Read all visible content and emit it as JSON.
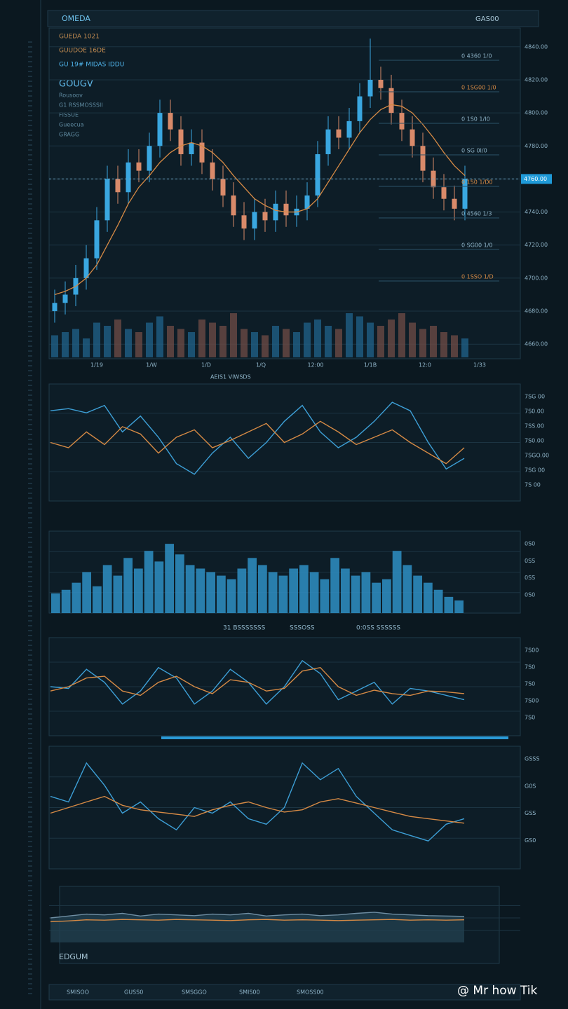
{
  "header": {
    "title": "OMEDA",
    "right": "GAS00"
  },
  "info": {
    "lines": [
      "GUEDA 1021",
      "GUUDOE 16DE",
      "GU 19# MIDAS IDDU"
    ],
    "heading": "GOUGV",
    "sub": [
      "Rousoov",
      "G1 RSSMOSSSII",
      "FISSUE",
      "Gueecua",
      "GRAGG"
    ]
  },
  "main": {
    "ylim": [
      4655,
      4845
    ],
    "yticks": [
      {
        "value": 4840,
        "label": "4840.00"
      },
      {
        "value": 4820,
        "label": "4820.00"
      },
      {
        "value": 4800,
        "label": "4800.00"
      },
      {
        "value": 4780,
        "label": "4780.00"
      },
      {
        "value": 4760,
        "label": "4760.00"
      },
      {
        "value": 4740,
        "label": "4740.00"
      },
      {
        "value": 4720,
        "label": "4720.00"
      },
      {
        "value": 4700,
        "label": "4700.00"
      },
      {
        "value": 4680,
        "label": "4680.00"
      },
      {
        "value": 4660,
        "label": "4660.00"
      }
    ],
    "open": [
      4680,
      4685,
      4690,
      4700,
      4712,
      4735,
      4760,
      4752,
      4770,
      4765,
      4780,
      4800,
      4790,
      4775,
      4782,
      4770,
      4760,
      4750,
      4738,
      4730,
      4740,
      4735,
      4745,
      4738,
      4742,
      4750,
      4775,
      4790,
      4785,
      4795,
      4810,
      4820,
      4815,
      4800,
      4790,
      4780,
      4765,
      4755,
      4748,
      4742
    ],
    "high": [
      4693,
      4698,
      4708,
      4720,
      4743,
      4768,
      4768,
      4778,
      4778,
      4788,
      4808,
      4808,
      4798,
      4790,
      4790,
      4778,
      4768,
      4758,
      4746,
      4748,
      4748,
      4753,
      4753,
      4750,
      4758,
      4783,
      4798,
      4798,
      4803,
      4818,
      4845,
      4828,
      4823,
      4808,
      4798,
      4788,
      4773,
      4763,
      4756,
      4768
    ],
    "low": [
      4673,
      4678,
      4683,
      4693,
      4705,
      4728,
      4745,
      4745,
      4758,
      4758,
      4773,
      4783,
      4768,
      4768,
      4763,
      4753,
      4743,
      4731,
      4723,
      4723,
      4728,
      4728,
      4731,
      4731,
      4735,
      4743,
      4768,
      4778,
      4778,
      4788,
      4803,
      4808,
      4793,
      4783,
      4773,
      4758,
      4748,
      4741,
      4735,
      4735
    ],
    "close": [
      4685,
      4690,
      4700,
      4712,
      4735,
      4760,
      4752,
      4770,
      4765,
      4780,
      4800,
      4790,
      4775,
      4782,
      4770,
      4760,
      4750,
      4738,
      4730,
      4740,
      4735,
      4745,
      4738,
      4742,
      4750,
      4775,
      4790,
      4785,
      4795,
      4810,
      4820,
      4815,
      4800,
      4790,
      4780,
      4765,
      4755,
      4748,
      4742,
      4760
    ],
    "ma": [
      4690,
      4692,
      4695,
      4700,
      4708,
      4720,
      4732,
      4745,
      4755,
      4762,
      4770,
      4776,
      4780,
      4782,
      4780,
      4776,
      4770,
      4762,
      4755,
      4748,
      4744,
      4741,
      4740,
      4740,
      4742,
      4748,
      4758,
      4768,
      4778,
      4788,
      4796,
      4802,
      4805,
      4804,
      4800,
      4793,
      4785,
      4776,
      4768,
      4762
    ],
    "vlim": [
      0,
      100
    ],
    "volume": [
      35,
      40,
      45,
      30,
      55,
      50,
      60,
      45,
      40,
      55,
      65,
      50,
      45,
      40,
      60,
      55,
      50,
      70,
      45,
      40,
      35,
      50,
      45,
      40,
      55,
      60,
      50,
      45,
      70,
      65,
      55,
      50,
      60,
      70,
      55,
      45,
      50,
      40,
      35,
      30
    ],
    "xlabels": [
      "1/19",
      "1/W",
      "1/D",
      "1/Q",
      "12:00",
      "1/1B",
      "12:0",
      "1/33"
    ],
    "tag": {
      "value": 4760,
      "label": "4760.00"
    },
    "levels": [
      "0 4360 1/0",
      "0 1SG00 1/0",
      "0 1S0 1/I0",
      "0 SG 0I/0",
      "0 1S0 1/D0",
      "0 4560 1/3",
      "0 SG00 1/0",
      "0 1SSO 1/D"
    ]
  },
  "panels": [
    {
      "type": "line",
      "ylim": [
        0,
        100
      ],
      "labels": [
        "7SG 00",
        "7S0.00",
        "7SS.00",
        "7S0.00",
        "7SGO.00",
        "7SG 00",
        "7S 00"
      ],
      "series": [
        {
          "color": "#3d9fd6",
          "values": [
            80,
            82,
            78,
            85,
            60,
            75,
            55,
            30,
            20,
            40,
            55,
            35,
            50,
            70,
            85,
            60,
            45,
            55,
            70,
            88,
            80,
            50,
            25,
            35
          ]
        },
        {
          "color": "#d68a45",
          "values": [
            50,
            45,
            60,
            48,
            65,
            58,
            40,
            55,
            62,
            45,
            52,
            60,
            68,
            50,
            58,
            70,
            60,
            48,
            55,
            62,
            50,
            40,
            30,
            45
          ]
        }
      ]
    },
    {
      "type": "bar",
      "ylim": [
        0,
        100
      ],
      "labels": [
        "0S0",
        "0SS",
        "0SS",
        "0S0"
      ],
      "color": "#2f8fc4",
      "series": [
        {
          "color": "#2f8fc4",
          "values": [
            20,
            25,
            35,
            50,
            30,
            60,
            45,
            70,
            55,
            80,
            65,
            90,
            75,
            60,
            55,
            50,
            45,
            40,
            55,
            70,
            60,
            50,
            45,
            55,
            60,
            50,
            40,
            70,
            55,
            45,
            50,
            35,
            40,
            80,
            60,
            45,
            35,
            25,
            15,
            10
          ]
        }
      ]
    },
    {
      "type": "line",
      "ylim": [
        0,
        100
      ],
      "labels": [
        "7S00",
        "7S0",
        "7S0",
        "7S00",
        "7S0"
      ],
      "series": [
        {
          "color": "#3d9fd6",
          "values": [
            50,
            48,
            70,
            55,
            30,
            45,
            72,
            60,
            30,
            45,
            70,
            55,
            30,
            50,
            80,
            65,
            35,
            45,
            55,
            30,
            48,
            45,
            40,
            35
          ]
        },
        {
          "color": "#d68a45",
          "values": [
            45,
            50,
            60,
            62,
            45,
            40,
            55,
            62,
            50,
            42,
            58,
            55,
            45,
            48,
            68,
            72,
            50,
            40,
            46,
            42,
            40,
            45,
            44,
            42
          ]
        }
      ]
    },
    {
      "type": "line",
      "ylim": [
        0,
        100
      ],
      "labels": [
        "GSSS",
        "G0S",
        "GSS",
        "GS0"
      ],
      "series": [
        {
          "color": "#3d9fd6",
          "values": [
            60,
            55,
            90,
            70,
            45,
            55,
            40,
            30,
            50,
            45,
            55,
            40,
            35,
            50,
            90,
            75,
            85,
            60,
            45,
            30,
            25,
            20,
            35,
            40
          ]
        },
        {
          "color": "#d68a45",
          "values": [
            45,
            50,
            55,
            60,
            52,
            48,
            46,
            44,
            42,
            48,
            52,
            55,
            50,
            46,
            48,
            55,
            58,
            54,
            50,
            46,
            42,
            40,
            38,
            36
          ]
        }
      ]
    },
    {
      "type": "area",
      "ylim": [
        0,
        100
      ],
      "labels": [],
      "series": [
        {
          "color": "#6f8ea3",
          "values": [
            50,
            55,
            60,
            58,
            62,
            55,
            60,
            58,
            56,
            60,
            58,
            62,
            55,
            58,
            60,
            56,
            58,
            62,
            65,
            60,
            58,
            56,
            55,
            54
          ]
        },
        {
          "color": "#d68a45",
          "values": [
            40,
            42,
            45,
            44,
            46,
            45,
            44,
            46,
            45,
            44,
            43,
            45,
            46,
            44,
            45,
            44,
            43,
            44,
            45,
            46,
            44,
            45,
            44,
            45
          ]
        }
      ]
    }
  ],
  "toolbar": [
    "31 BSSSSSSS",
    "SSSOSS",
    "0:0SS SSSSSS"
  ],
  "section": "AEIS1 VIWSDS",
  "footer": {
    "brand": "EDGUM",
    "items": [
      "SMISOO",
      "GUSS0",
      "SMSGGO",
      "SMIS00",
      "SMOSS00"
    ],
    "watermark": "@ Mr how Tik"
  }
}
